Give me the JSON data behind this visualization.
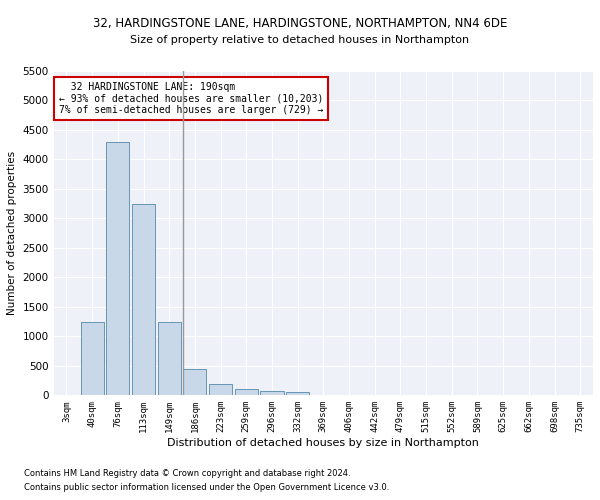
{
  "title_line1": "32, HARDINGSTONE LANE, HARDINGSTONE, NORTHAMPTON, NN4 6DE",
  "title_line2": "Size of property relative to detached houses in Northampton",
  "xlabel": "Distribution of detached houses by size in Northampton",
  "ylabel": "Number of detached properties",
  "footnote1": "Contains HM Land Registry data © Crown copyright and database right 2024.",
  "footnote2": "Contains public sector information licensed under the Open Government Licence v3.0.",
  "annotation_line1": "  32 HARDINGSTONE LANE: 190sqm",
  "annotation_line2": "← 93% of detached houses are smaller (10,203)",
  "annotation_line3": "7% of semi-detached houses are larger (729) →",
  "bar_color": "#c8d8e8",
  "bar_edge_color": "#5588aa",
  "highlight_line_color": "#999999",
  "annotation_box_color": "#ffffff",
  "annotation_box_edge": "#cc0000",
  "categories": [
    "3sqm",
    "40sqm",
    "76sqm",
    "113sqm",
    "149sqm",
    "186sqm",
    "223sqm",
    "259sqm",
    "296sqm",
    "332sqm",
    "369sqm",
    "406sqm",
    "442sqm",
    "479sqm",
    "515sqm",
    "552sqm",
    "589sqm",
    "625sqm",
    "662sqm",
    "698sqm",
    "735sqm"
  ],
  "values": [
    0,
    1250,
    4300,
    3250,
    1250,
    450,
    200,
    100,
    75,
    50,
    0,
    0,
    0,
    0,
    0,
    0,
    0,
    0,
    0,
    0,
    0
  ],
  "ylim": [
    0,
    5500
  ],
  "yticks": [
    0,
    500,
    1000,
    1500,
    2000,
    2500,
    3000,
    3500,
    4000,
    4500,
    5000,
    5500
  ],
  "highlight_bar_index": 5,
  "fig_bg": "#ffffff",
  "ax_bg": "#eef2f8"
}
